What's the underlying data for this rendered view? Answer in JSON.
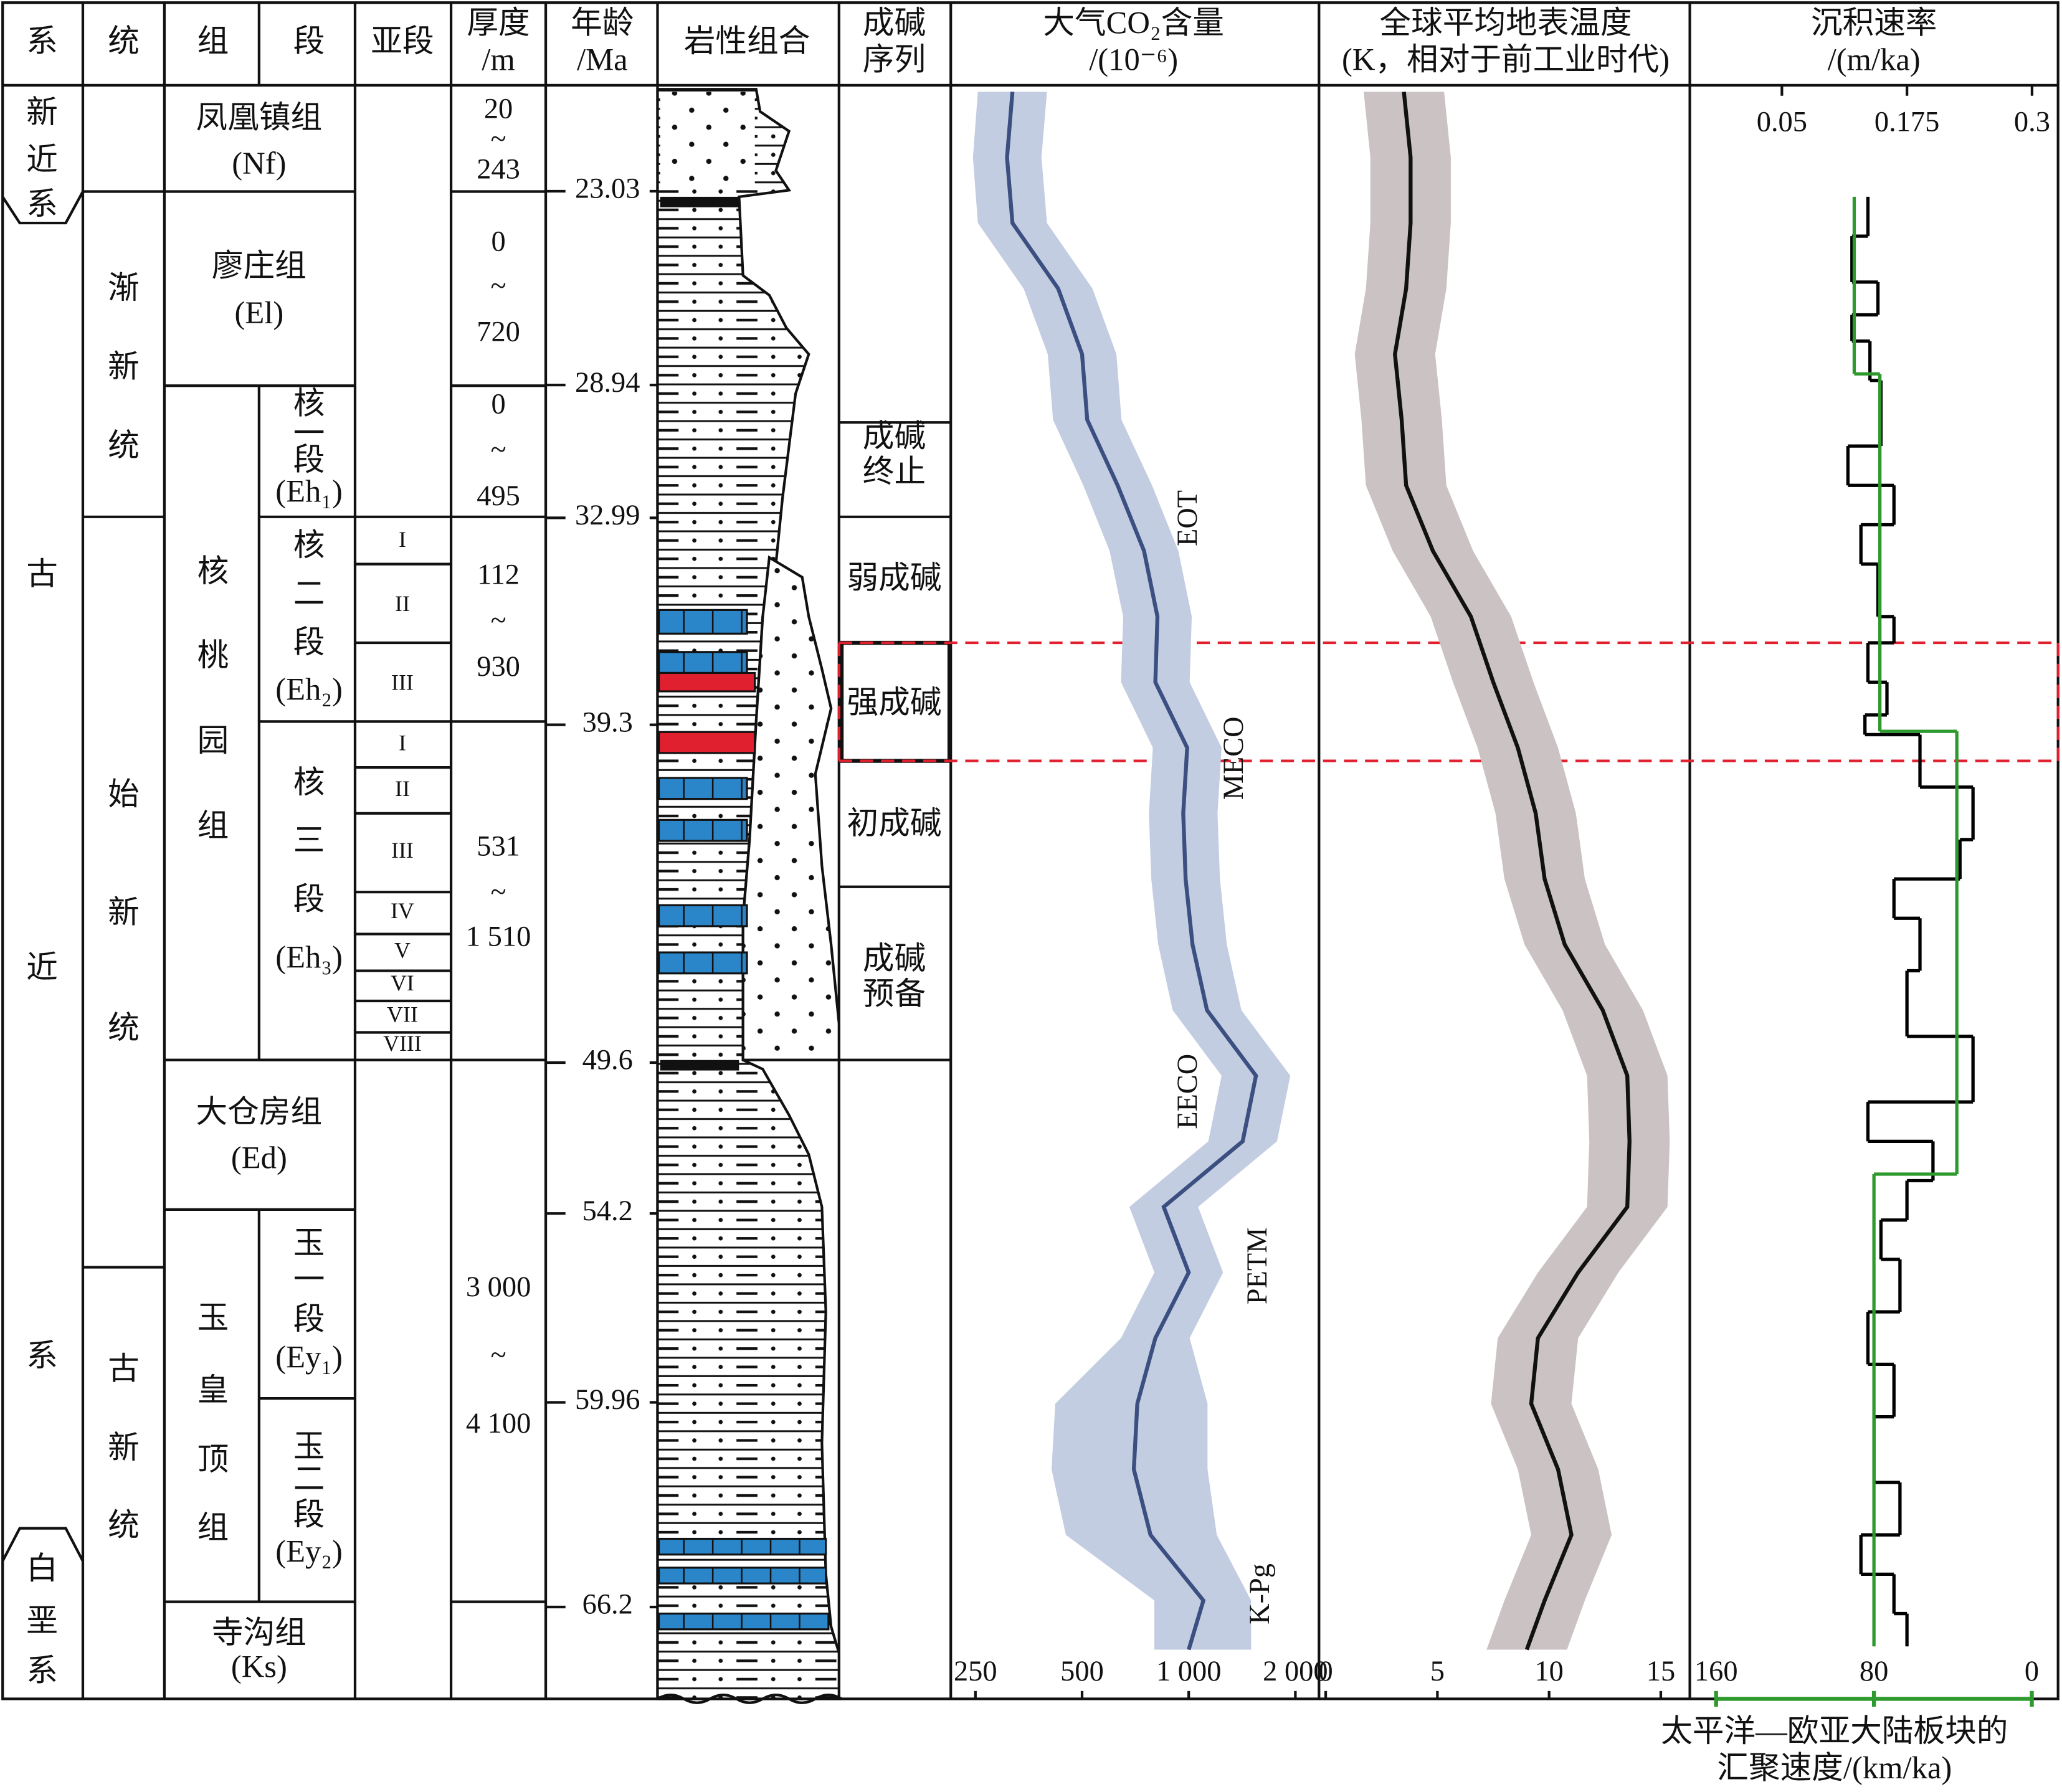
{
  "strat": {
    "header": {
      "system": "系",
      "series": "统",
      "formation": "组",
      "member": "段",
      "submember": "亚段",
      "thickness": [
        "厚度",
        "/m"
      ],
      "age": [
        "年龄",
        "/Ma"
      ],
      "lithology": "岩性组合",
      "sequence": [
        "成碱",
        "序列"
      ]
    },
    "system": [
      [
        "新",
        "近",
        "系"
      ],
      [
        "古",
        "近",
        "系"
      ],
      [
        "白",
        "垩",
        "系"
      ]
    ],
    "series": [
      [
        "渐",
        "新",
        "统"
      ],
      [
        "始",
        "新",
        "统"
      ],
      [
        "古",
        "新",
        "统"
      ]
    ],
    "formation": [
      [
        "凤凰镇组",
        "(Nf)"
      ],
      [
        "廖庄组",
        "(El)"
      ],
      [
        "核",
        "桃",
        "园",
        "组"
      ],
      [
        "大仓房组",
        "(Ed)"
      ],
      [
        "玉",
        "皇",
        "顶",
        "组"
      ],
      [
        "寺沟组",
        "(Ks)"
      ]
    ],
    "member": [
      [
        "核",
        "一",
        "段",
        "(Eh₁)"
      ],
      [
        "核",
        "二",
        "段",
        "(Eh₂)"
      ],
      [
        "核",
        "三",
        "段",
        "(Eh₃)"
      ],
      [
        "玉",
        "一",
        "段",
        "(Ey₁)"
      ],
      [
        "玉",
        "二",
        "段",
        "(Ey₂)"
      ]
    ],
    "submember": [
      [
        "I",
        "II",
        "III"
      ],
      [
        "I",
        "II",
        "III",
        "IV",
        "V",
        "VI",
        "VII",
        "VIII"
      ]
    ],
    "thickness": [
      [
        "20",
        "~",
        "243"
      ],
      [
        "0",
        "~",
        "720"
      ],
      [
        "0",
        "~",
        "495"
      ],
      [
        "112",
        "~",
        "930"
      ],
      [
        "531",
        "~",
        "1 510"
      ],
      [
        "3 000",
        "~",
        "4 100"
      ]
    ],
    "sequence": [
      [
        "成碱",
        "终止"
      ],
      [
        "弱成碱"
      ],
      [
        "强成碱"
      ],
      [
        "初成碱"
      ],
      [
        "成碱",
        "预备"
      ]
    ],
    "age_axis": {
      "ylim": [
        69,
        19.8
      ],
      "ticks": [
        23.03,
        28.94,
        32.99,
        39.3,
        49.6,
        54.2,
        59.96,
        66.2
      ]
    }
  },
  "chart_data": [
    {
      "type": "line",
      "title": "大气CO₂含量",
      "subtitle": "/(10⁻⁶)",
      "x_scale": "log",
      "xlim": [
        213,
        2332
      ],
      "xticks": [
        250,
        500,
        {
          "value": 1000,
          "label": "1 000"
        },
        {
          "value": 2000,
          "label": "2 000"
        }
      ],
      "ylim": [
        69,
        19.8
      ],
      "y": [
        20,
        22,
        24,
        26,
        28,
        30,
        32,
        34,
        36,
        38,
        40,
        42,
        44,
        46,
        48,
        50,
        52,
        54,
        56,
        58,
        60,
        62,
        64,
        66,
        67.5
      ],
      "series": [
        {
          "color": "#3b4f80",
          "band_color": "#c3cde2",
          "values": [
            318,
            307,
            318,
            428,
            500,
            517,
            630,
            748,
            816,
            805,
            990,
            965,
            980,
            1025,
            1126,
            1548,
            1420,
            850,
            1000,
            805,
            716,
            700,
            780,
            1100,
            1000
          ],
          "lower": [
            254,
            246,
            254,
            342,
            400,
            414,
            504,
            598,
            653,
            644,
            792,
            772,
            784,
            820,
            901,
            1238,
            1136,
            680,
            800,
            644,
            420,
            410,
            450,
            800,
            800
          ],
          "upper": [
            398,
            384,
            398,
            535,
            625,
            646,
            788,
            935,
            1020,
            1006,
            1238,
            1206,
            1225,
            1281,
            1408,
            1935,
            1775,
            1063,
            1250,
            1006,
            1130,
            1130,
            1200,
            1500,
            1500
          ]
        }
      ],
      "annotations": [
        "EOT",
        "MECO",
        "EECO",
        "PETM",
        "K-Pg"
      ]
    },
    {
      "type": "line",
      "title": "全球平均地表温度",
      "subtitle": "(K，相对于前工业时代)",
      "x_scale": "linear",
      "xlim": [
        -0.3,
        16.3
      ],
      "xticks": [
        0,
        5,
        10,
        15
      ],
      "ylim": [
        69,
        19.8
      ],
      "y": [
        20,
        22,
        24,
        26,
        28,
        30,
        32,
        34,
        36,
        38,
        40,
        42,
        44,
        46,
        48,
        50,
        52,
        54,
        56,
        58,
        60,
        62,
        64,
        66,
        67.5
      ],
      "series": [
        {
          "color": "#111111",
          "band_color": "#cbc3c3",
          "values": [
            3.5,
            3.8,
            3.8,
            3.6,
            3.1,
            3.4,
            3.6,
            4.8,
            6.5,
            7.5,
            8.6,
            9.4,
            9.8,
            10.7,
            12.4,
            13.5,
            13.6,
            13.5,
            11.3,
            9.5,
            9.2,
            10.4,
            11.0,
            9.8,
            9.0
          ],
          "lower": [
            1.7,
            2.0,
            2.0,
            1.8,
            1.3,
            1.6,
            1.8,
            3.0,
            4.7,
            5.7,
            6.8,
            7.6,
            8.0,
            8.9,
            10.6,
            11.7,
            11.8,
            11.7,
            9.5,
            7.7,
            7.4,
            8.6,
            9.2,
            8.0,
            7.2
          ],
          "upper": [
            5.3,
            5.6,
            5.6,
            5.4,
            4.9,
            5.2,
            5.4,
            6.6,
            8.3,
            9.3,
            10.4,
            11.2,
            11.6,
            12.5,
            14.2,
            15.3,
            15.4,
            15.3,
            13.1,
            11.3,
            11.0,
            12.2,
            12.8,
            11.6,
            10.8
          ]
        }
      ]
    },
    {
      "type": "step",
      "title": "沉积速率",
      "subtitle": "/(m/ka)",
      "x_scale": "linear",
      "xlim": [
        -0.042,
        0.326
      ],
      "xticks": [
        0.05,
        0.175,
        0.3
      ],
      "x2lim": [
        173.3,
        -13.3
      ],
      "x2ticks": [
        160,
        80,
        0
      ],
      "x2label": [
        "太平洋—欧亚大陆板块的",
        "汇聚速度/(km/ka)"
      ],
      "ylim": [
        69,
        19.8
      ],
      "series": [
        {
          "color": "#000000",
          "bins": [
            23.2,
            24.4,
            25.8,
            26.8,
            27.6,
            28.8,
            30.8,
            32,
            33.2,
            34.4,
            36.0,
            36.8,
            38.0,
            39.0,
            39.6,
            41.2,
            42.8,
            44.0,
            45.2,
            46.8,
            48.8,
            50.8,
            52.0,
            53.2,
            54.4,
            55.6,
            57.2,
            58.8,
            60.4,
            62.4,
            64.0,
            65.2,
            66.4,
            67.4
          ],
          "values": [
            0.136,
            0.12,
            0.146,
            0.12,
            0.138,
            0.149,
            0.116,
            0.162,
            0.129,
            0.146,
            0.162,
            0.136,
            0.155,
            0.133,
            0.188,
            0.241,
            0.228,
            0.162,
            0.188,
            0.175,
            0.241,
            0.136,
            0.201,
            0.175,
            0.149,
            0.168,
            0.136,
            0.162,
            0.142,
            0.168,
            0.129,
            0.162,
            0.175
          ]
        },
        {
          "color": "#2e9a2e",
          "axis": "x2",
          "bins": [
            23.2,
            28.6,
            39.5,
            53.0,
            67.4
          ],
          "values": [
            90,
            77,
            38,
            80
          ]
        }
      ]
    }
  ]
}
